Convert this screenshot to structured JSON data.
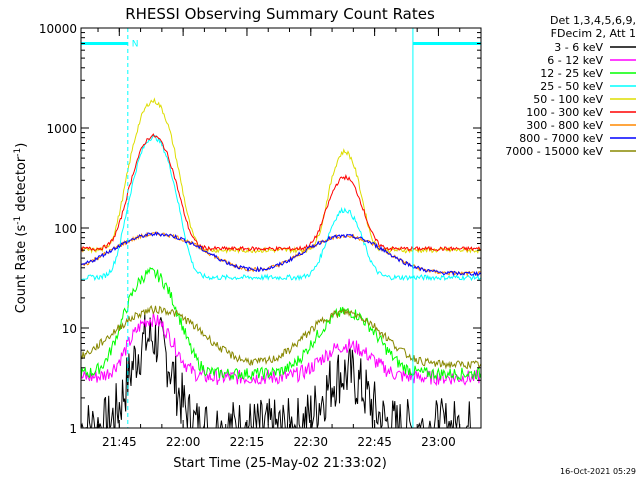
{
  "chart_data": {
    "type": "line",
    "title": "RHESSI Observing Summary Count Rates",
    "xlabel": "Start Time (25-May-02 21:33:02)",
    "ylabel_main": "Count Rate (s",
    "ylabel_sup1": "-1",
    "ylabel_mid": " detector",
    "ylabel_sup2": "-1",
    "ylabel_end": ")",
    "y_scale": "log",
    "ylim": [
      1,
      10000
    ],
    "xlim_minutes": [
      -24,
      70
    ],
    "x_ticks": [
      {
        "t": -15,
        "label": "21:45"
      },
      {
        "t": 0,
        "label": "22:00"
      },
      {
        "t": 15,
        "label": "22:15"
      },
      {
        "t": 30,
        "label": "22:30"
      },
      {
        "t": 45,
        "label": "22:45"
      },
      {
        "t": 60,
        "label": "23:00"
      }
    ],
    "y_ticks": [
      {
        "v": 1,
        "label": "1"
      },
      {
        "v": 10,
        "label": "10"
      },
      {
        "v": 100,
        "label": "100"
      },
      {
        "v": 1000,
        "label": "1000"
      },
      {
        "v": 10000,
        "label": "10000"
      }
    ],
    "legend_header": [
      "Det 1,3,4,5,6,9,",
      "FDecim 2, Att 1"
    ],
    "legend_position": "right",
    "series": [
      {
        "name": "3 - 6 keV",
        "color": "#000000",
        "base": 1,
        "noise": 0.6,
        "peaks": [
          [
            -7.5,
            7,
            3.5
          ],
          [
            38,
            2.5,
            4
          ]
        ]
      },
      {
        "name": "6 - 12 keV",
        "color": "#ff00ff",
        "base": 3.2,
        "noise": 0.15,
        "peaks": [
          [
            -7.5,
            9,
            4
          ],
          [
            38.5,
            3.5,
            5
          ]
        ]
      },
      {
        "name": "12 - 25 keV",
        "color": "#00ff00",
        "base": 3.5,
        "noise": 0.12,
        "peaks": [
          [
            -7.5,
            32,
            4.2
          ],
          [
            38.5,
            11,
            5.5
          ]
        ]
      },
      {
        "name": "25 - 50 keV",
        "color": "#00ffff",
        "base": 32,
        "noise": 0.05,
        "peaks": [
          [
            -7,
            780,
            3.2
          ],
          [
            38,
            120,
            3
          ]
        ]
      },
      {
        "name": "50 - 100 keV",
        "color": "#dddd00",
        "base": 60,
        "noise": 0.05,
        "peaks": [
          [
            -7,
            1800,
            3.2
          ],
          [
            38,
            520,
            2.5
          ]
        ]
      },
      {
        "name": "100 - 300 keV",
        "color": "#ff0000",
        "base": 62,
        "noise": 0.04,
        "peaks": [
          [
            -7,
            770,
            3.4
          ],
          [
            38,
            260,
            3
          ]
        ]
      },
      {
        "name": "300 - 800 keV",
        "color": "#ff8800",
        "base": 35,
        "noise": 0.04,
        "peaks": [
          [
            -6,
            52,
            9
          ],
          [
            38,
            48,
            8
          ]
        ]
      },
      {
        "name": "800 - 7000 keV",
        "color": "#0000ff",
        "base": 35,
        "noise": 0.04,
        "peaks": [
          [
            -6,
            52,
            9
          ],
          [
            38,
            48,
            8
          ]
        ]
      },
      {
        "name": "7000 - 15000 keV",
        "color": "#888800",
        "base": 4.3,
        "noise": 0.08,
        "peaks": [
          [
            -6,
            11,
            8
          ],
          [
            38,
            10,
            7
          ]
        ]
      }
    ],
    "flags": {
      "saa_label": "N",
      "segments": [
        [
          -24,
          -13
        ],
        [
          54,
          70
        ]
      ],
      "level": 7000
    },
    "footer_date": "16-Oct-2021 05:29"
  }
}
